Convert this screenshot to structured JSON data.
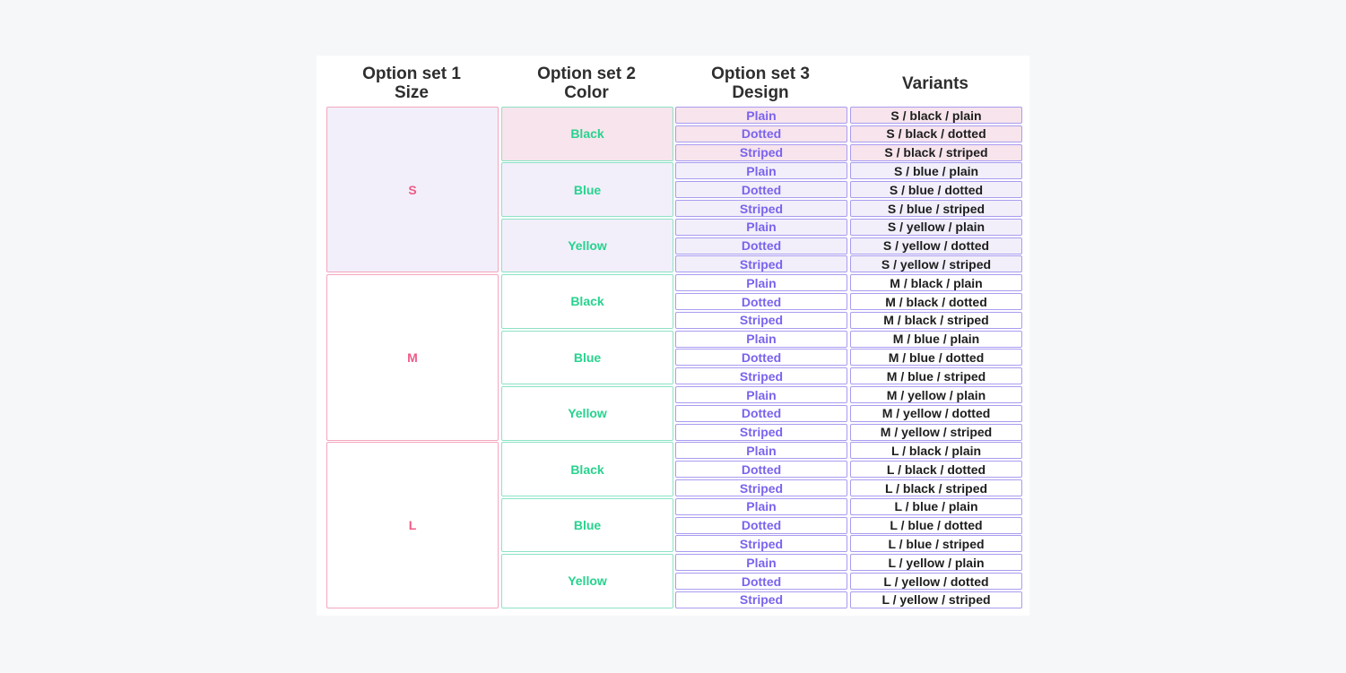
{
  "headers": {
    "size": [
      "Option set 1",
      "Size"
    ],
    "color": [
      "Option set 2",
      "Color"
    ],
    "design": [
      "Option set 3",
      "Design"
    ],
    "variants": "Variants"
  },
  "sizes": [
    "S",
    "M",
    "L"
  ],
  "colors": [
    "Black",
    "Blue",
    "Yellow"
  ],
  "designs": [
    "Plain",
    "Dotted",
    "Striped"
  ],
  "variants": [
    "S / black / plain",
    "S / black / dotted",
    "S / black / striped",
    "S / blue / plain",
    "S / blue / dotted",
    "S / blue / striped",
    "S / yellow / plain",
    "S / yellow / dotted",
    "S / yellow / striped",
    "M / black / plain",
    "M / black / dotted",
    "M / black / striped",
    "M / blue / plain",
    "M / blue / dotted",
    "M / blue / striped",
    "M / yellow / plain",
    "M / yellow / dotted",
    "M / yellow / striped",
    "L / black / plain",
    "L / black / dotted",
    "L / black / striped",
    "L / blue / plain",
    "L / blue / dotted",
    "L / blue / striped",
    "L / yellow / plain",
    "L / yellow / dotted",
    "L / yellow / striped"
  ],
  "highlight": {
    "size": "S",
    "color": "Black"
  },
  "colors_theme": {
    "size_border": "#f4a6bd",
    "size_text": "#ee5b86",
    "color_border": "#8de2c5",
    "color_text": "#27d38e",
    "design_border": "#a99cf0",
    "design_text": "#7a63ee",
    "highlight_lavender": "#f2effa",
    "highlight_pink": "#f7e4ec"
  }
}
